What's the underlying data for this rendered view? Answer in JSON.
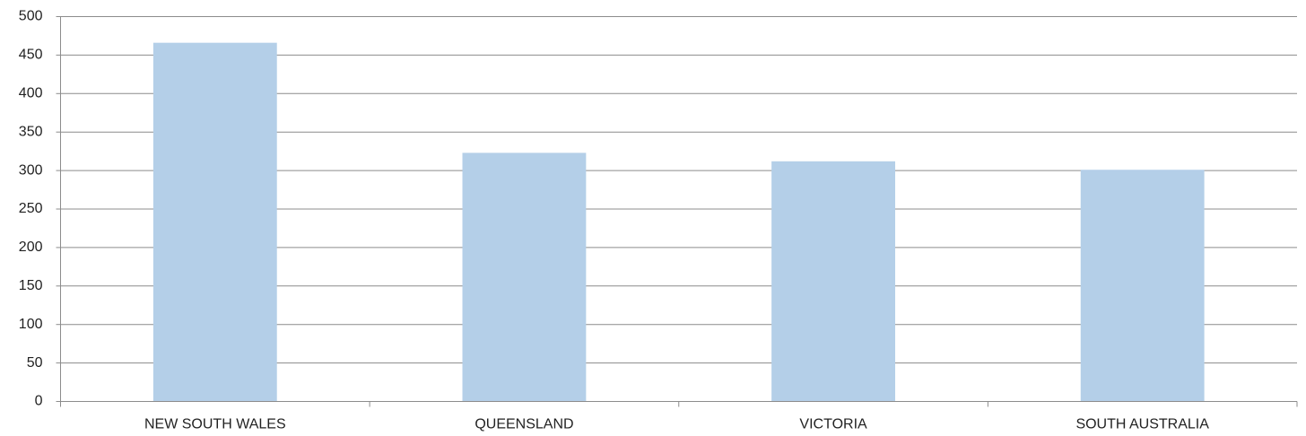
{
  "chart_data": {
    "type": "bar",
    "categories": [
      "NEW SOUTH WALES",
      "QUEENSLAND",
      "VICTORIA",
      "SOUTH AUSTRALIA"
    ],
    "values": [
      466,
      323,
      312,
      301
    ],
    "color": "#b4cfe8",
    "ylim": [
      0,
      500
    ],
    "yticks": [
      0,
      50,
      100,
      150,
      200,
      250,
      300,
      350,
      400,
      450,
      500
    ],
    "grid": true
  }
}
